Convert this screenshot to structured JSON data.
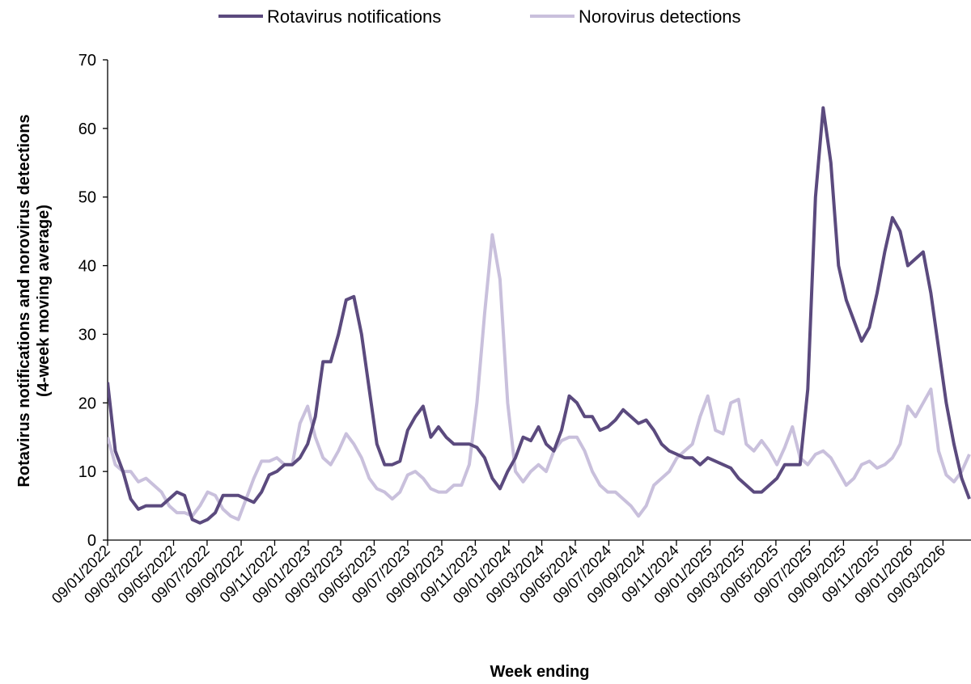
{
  "chart_data": {
    "type": "line",
    "ylabel": [
      "Rotavirus notifications and norovirus detections",
      "(4-week moving average)"
    ],
    "xlabel": "Week ending",
    "x": [
      "09/01/2022",
      "23/01/2022",
      "06/02/2022",
      "20/02/2022",
      "06/03/2022",
      "20/03/2022",
      "03/04/2022",
      "17/04/2022",
      "01/05/2022",
      "15/05/2022",
      "29/05/2022",
      "12/06/2022",
      "26/06/2022",
      "10/07/2022",
      "24/07/2022",
      "07/08/2022",
      "21/08/2022",
      "04/09/2022",
      "18/09/2022",
      "02/10/2022",
      "16/10/2022",
      "30/10/2022",
      "13/11/2022",
      "27/11/2022",
      "11/12/2022",
      "25/12/2022",
      "08/01/2023",
      "22/01/2023",
      "05/02/2023",
      "19/02/2023",
      "05/03/2023",
      "19/03/2023",
      "02/04/2023",
      "16/04/2023",
      "30/04/2023",
      "14/05/2023",
      "28/05/2023",
      "11/06/2023",
      "25/06/2023",
      "09/07/2023",
      "23/07/2023",
      "06/08/2023",
      "20/08/2023",
      "03/09/2023",
      "17/09/2023",
      "01/10/2023",
      "15/10/2023",
      "29/10/2023",
      "12/11/2023",
      "26/11/2023",
      "10/12/2023",
      "24/12/2023",
      "07/01/2024",
      "21/01/2024",
      "04/02/2024",
      "18/02/2024",
      "03/03/2024",
      "17/03/2024",
      "31/03/2024",
      "14/04/2024",
      "28/04/2024",
      "12/05/2024",
      "26/05/2024",
      "09/06/2024",
      "23/06/2024",
      "07/07/2024",
      "21/07/2024",
      "04/08/2024",
      "18/08/2024",
      "01/09/2024",
      "15/09/2024",
      "29/09/2024",
      "13/10/2024",
      "27/10/2024",
      "10/11/2024",
      "24/11/2024",
      "08/12/2024",
      "22/12/2024",
      "05/01/2025",
      "19/01/2025",
      "02/02/2025",
      "16/02/2025",
      "02/03/2025",
      "16/03/2025",
      "30/03/2025",
      "13/04/2025",
      "27/04/2025",
      "11/05/2025",
      "25/05/2025",
      "08/06/2025",
      "22/06/2025",
      "06/07/2025",
      "20/07/2025",
      "03/08/2025",
      "17/08/2025",
      "31/08/2025",
      "14/09/2025",
      "28/09/2025",
      "12/10/2025",
      "26/10/2025",
      "09/11/2025",
      "23/11/2025",
      "07/12/2025",
      "21/12/2025",
      "04/01/2026",
      "18/01/2026",
      "01/02/2026",
      "15/02/2026",
      "01/03/2026",
      "15/03/2026",
      "29/03/2026",
      "12/04/2026",
      "26/04/2026"
    ],
    "series": [
      {
        "name": "Rotavirus notifications",
        "color": "#5b4a7e",
        "values": [
          23,
          13,
          10,
          6,
          4.5,
          5,
          5,
          5,
          6,
          7,
          6.5,
          3,
          2.5,
          3,
          4,
          6.5,
          6.5,
          6.5,
          6,
          5.5,
          7,
          9.5,
          10,
          11,
          11,
          12,
          14,
          18,
          26,
          26,
          30,
          35,
          35.5,
          30,
          22,
          14,
          11,
          11,
          11.5,
          16,
          18,
          19.5,
          15,
          16.5,
          15,
          14,
          14,
          14,
          13.5,
          12,
          9,
          7.5,
          10,
          12,
          15,
          14.5,
          16.5,
          14,
          13,
          16,
          21,
          20,
          18,
          18,
          16,
          16.5,
          17.5,
          19,
          18,
          17,
          17.5,
          16,
          14,
          13,
          12.5,
          12,
          12,
          11,
          12,
          11.5,
          11,
          10.5,
          9,
          8,
          7,
          7,
          8,
          9,
          11,
          11,
          11,
          22,
          50,
          63,
          55,
          40,
          35,
          32,
          29,
          31,
          36,
          42,
          47,
          45,
          40,
          41,
          42,
          36,
          28,
          20,
          14,
          9,
          6
        ]
      },
      {
        "name": "Norovirus detections",
        "color": "#c9c0dc",
        "values": [
          15,
          11,
          10,
          10,
          8.5,
          9,
          8,
          7,
          5,
          4,
          4,
          3.5,
          5,
          7,
          6.5,
          4.5,
          3.5,
          3,
          6,
          9,
          11.5,
          11.5,
          12,
          11,
          11,
          17,
          19.5,
          15,
          12,
          11,
          13,
          15.5,
          14,
          12,
          9,
          7.5,
          7,
          6,
          7,
          9.5,
          10,
          9,
          7.5,
          7,
          7,
          8,
          8,
          11,
          20,
          33,
          44.5,
          38,
          20,
          10,
          8.5,
          10,
          11,
          10,
          13,
          14.5,
          15,
          15,
          13,
          10,
          8,
          7,
          7,
          6,
          5,
          3.5,
          5,
          8,
          9,
          10,
          12,
          13,
          14,
          18,
          21,
          16,
          15.5,
          20,
          20.5,
          14,
          13,
          14.5,
          13,
          11,
          13.5,
          16.5,
          12,
          11,
          12.5,
          13,
          12,
          10,
          8,
          9,
          11,
          11.5,
          10.5,
          11,
          12,
          14,
          19.5,
          18,
          20,
          22,
          13,
          9.5,
          8.5,
          10,
          12.5
        ]
      }
    ],
    "xlim": [
      "09/01/2022",
      "29/04/2026"
    ],
    "xticks": [
      "09/01/2022",
      "09/03/2022",
      "09/05/2022",
      "09/07/2022",
      "09/09/2022",
      "09/11/2022",
      "09/01/2023",
      "09/03/2023",
      "09/05/2023",
      "09/07/2023",
      "09/09/2023",
      "09/11/2023",
      "09/01/2024",
      "09/03/2024",
      "09/05/2024",
      "09/07/2024",
      "09/09/2024",
      "09/11/2024",
      "09/01/2025",
      "09/03/2025",
      "09/05/2025",
      "09/07/2025",
      "09/09/2025",
      "09/11/2025",
      "09/01/2026",
      "09/03/2026"
    ],
    "ylim": [
      0,
      70
    ],
    "yticks": [
      0,
      10,
      20,
      30,
      40,
      50,
      60,
      70
    ],
    "legend": "top"
  }
}
